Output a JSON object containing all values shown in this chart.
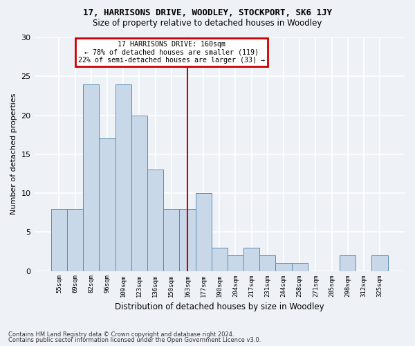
{
  "title": "17, HARRISONS DRIVE, WOODLEY, STOCKPORT, SK6 1JY",
  "subtitle": "Size of property relative to detached houses in Woodley",
  "xlabel": "Distribution of detached houses by size in Woodley",
  "ylabel": "Number of detached properties",
  "categories": [
    "55sqm",
    "69sqm",
    "82sqm",
    "96sqm",
    "109sqm",
    "123sqm",
    "136sqm",
    "150sqm",
    "163sqm",
    "177sqm",
    "190sqm",
    "204sqm",
    "217sqm",
    "231sqm",
    "244sqm",
    "258sqm",
    "271sqm",
    "285sqm",
    "298sqm",
    "312sqm",
    "325sqm"
  ],
  "values": [
    8,
    8,
    24,
    17,
    24,
    20,
    13,
    8,
    8,
    10,
    3,
    2,
    3,
    2,
    1,
    1,
    0,
    0,
    2,
    0,
    2
  ],
  "bar_color": "#c8d8e8",
  "bar_edge_color": "#5b8db0",
  "vline_x_index": 8,
  "vline_color": "#cc0000",
  "annotation_text": "17 HARRISONS DRIVE: 160sqm\n← 78% of detached houses are smaller (119)\n22% of semi-detached houses are larger (33) →",
  "annotation_box_color": "#cc0000",
  "ylim": [
    0,
    30
  ],
  "yticks": [
    0,
    5,
    10,
    15,
    20,
    25,
    30
  ],
  "background_color": "#eef2f7",
  "grid_color": "#ffffff",
  "footer_line1": "Contains HM Land Registry data © Crown copyright and database right 2024.",
  "footer_line2": "Contains public sector information licensed under the Open Government Licence v3.0."
}
